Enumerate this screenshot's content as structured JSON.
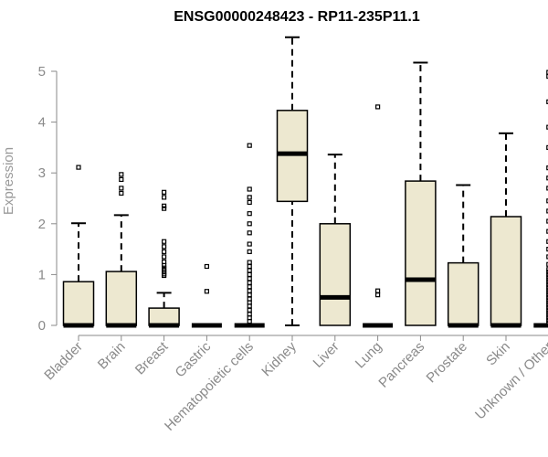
{
  "chart_data": {
    "type": "box",
    "title": "ENSG00000248423 - RP11-235P11.1",
    "xlabel": "",
    "ylabel": "Expression",
    "ylim": [
      0,
      5.2
    ],
    "yticks": [
      0,
      1,
      2,
      3,
      4,
      5
    ],
    "grid": false,
    "colors": {
      "box_fill": "#ede8d0",
      "box_stroke": "#000000",
      "axis": "#8a8a8a",
      "median": "#000000"
    },
    "categories": [
      "Bladder",
      "Brain",
      "Breast",
      "Gastric",
      "Hematopoietic cells",
      "Kidney",
      "Liver",
      "Lung",
      "Pancreas",
      "Prostate",
      "Skin",
      "Unknown / Other"
    ],
    "boxes": [
      {
        "category": "Bladder",
        "whisker_low": 0,
        "q1": 0,
        "median": 0,
        "q3": 0.86,
        "whisker_high": 2.01,
        "outliers": [
          3.11
        ]
      },
      {
        "category": "Brain",
        "whisker_low": 0,
        "q1": 0,
        "median": 0,
        "q3": 1.06,
        "whisker_high": 2.17,
        "outliers": [
          2.6,
          2.7,
          2.87,
          2.97
        ]
      },
      {
        "category": "Breast",
        "whisker_low": 0,
        "q1": 0,
        "median": 0,
        "q3": 0.34,
        "whisker_high": 0.64,
        "outliers": [
          0.98,
          1.01,
          1.05,
          1.09,
          1.13,
          1.18,
          1.25,
          1.35,
          1.45,
          1.55,
          1.65,
          2.3,
          2.35,
          2.52,
          2.62
        ]
      },
      {
        "category": "Gastric",
        "whisker_low": 0,
        "q1": 0,
        "median": 0,
        "q3": 0,
        "whisker_high": 0,
        "outliers": [
          0.67,
          1.16
        ]
      },
      {
        "category": "Hematopoietic cells",
        "whisker_low": 0,
        "q1": 0,
        "median": 0,
        "q3": 0,
        "whisker_high": 0,
        "outliers": [
          0.08,
          0.15,
          0.22,
          0.3,
          0.38,
          0.45,
          0.52,
          0.6,
          0.68,
          0.76,
          0.84,
          0.92,
          1.0,
          1.08,
          1.16,
          1.24,
          1.45,
          1.6,
          1.82,
          2.0,
          2.2,
          2.42,
          2.52,
          2.68,
          3.54
        ]
      },
      {
        "category": "Kidney",
        "whisker_low": 0,
        "q1": 2.44,
        "median": 3.38,
        "q3": 4.23,
        "whisker_high": 5.67,
        "outliers": []
      },
      {
        "category": "Liver",
        "whisker_low": 0,
        "q1": 0,
        "median": 0.55,
        "q3": 2.0,
        "whisker_high": 3.36,
        "outliers": []
      },
      {
        "category": "Lung",
        "whisker_low": 0,
        "q1": 0,
        "median": 0,
        "q3": 0,
        "whisker_high": 0,
        "outliers": [
          0.6,
          0.68,
          4.3
        ]
      },
      {
        "category": "Pancreas",
        "whisker_low": 0,
        "q1": 0,
        "median": 0.9,
        "q3": 2.84,
        "whisker_high": 5.17,
        "outliers": []
      },
      {
        "category": "Prostate",
        "whisker_low": 0,
        "q1": 0,
        "median": 0,
        "q3": 1.23,
        "whisker_high": 2.76,
        "outliers": []
      },
      {
        "category": "Skin",
        "whisker_low": 0,
        "q1": 0,
        "median": 0,
        "q3": 2.14,
        "whisker_high": 3.78,
        "outliers": []
      },
      {
        "category": "Unknown / Other",
        "whisker_low": 0,
        "q1": 0,
        "median": 0,
        "q3": 0,
        "whisker_high": 0,
        "outliers": [
          0.05,
          0.1,
          0.15,
          0.2,
          0.25,
          0.3,
          0.35,
          0.4,
          0.45,
          0.5,
          0.55,
          0.6,
          0.65,
          0.7,
          0.75,
          0.8,
          0.85,
          0.9,
          0.95,
          1.0,
          1.05,
          1.1,
          1.2,
          1.35,
          1.5,
          1.65,
          1.85,
          2.05,
          2.25,
          2.45,
          2.7,
          2.9,
          3.1,
          3.5,
          3.9,
          4.4,
          4.9,
          4.98
        ]
      }
    ]
  }
}
